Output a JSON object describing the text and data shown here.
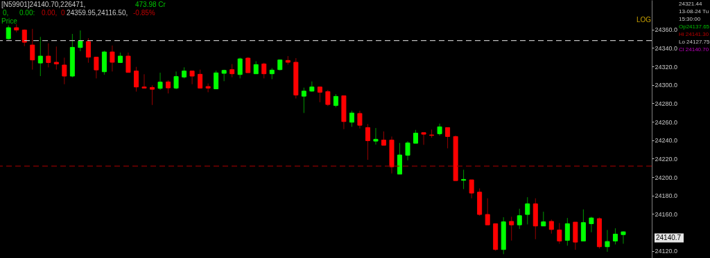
{
  "chart_data": {
    "type": "candlestick",
    "categories": [
      null,
      null,
      null,
      null,
      null,
      null,
      null,
      null,
      null,
      null,
      null,
      null,
      null,
      null,
      null,
      null,
      null,
      null,
      null,
      null,
      null,
      null,
      null,
      null,
      null,
      null,
      null,
      null,
      null,
      null,
      null,
      null,
      null,
      null,
      null,
      null,
      null,
      null,
      null,
      null,
      null,
      null,
      null,
      null,
      null,
      null,
      null,
      null,
      null,
      null,
      null,
      null,
      null,
      null,
      null,
      null,
      null,
      null,
      null,
      null,
      null,
      null,
      null,
      null,
      null,
      null,
      null,
      null,
      null,
      null,
      null,
      null,
      null,
      null,
      null,
      null,
      null,
      null
    ],
    "ohlc": [
      [
        24350,
        24364.5,
        24349,
        24362
      ],
      [
        24362,
        24365.7,
        24357,
        24359.5
      ],
      [
        24359.5,
        24360,
        24342,
        24346.2
      ],
      [
        24343.2,
        24360.7,
        24316.5,
        24327
      ],
      [
        24323.7,
        24352,
        24309.5,
        24331.2
      ],
      [
        24331.2,
        24345,
        24319,
        24324.2
      ],
      [
        24324.5,
        24341.5,
        24316.5,
        24322.7
      ],
      [
        24321.5,
        24329.5,
        24300.7,
        24309.5
      ],
      [
        24309.5,
        24355.2,
        24308.2,
        24340.7
      ],
      [
        24340.5,
        24359,
        24336.5,
        24347.5
      ],
      [
        24347,
        24350.7,
        24324,
        24330
      ],
      [
        24330,
        24330,
        24307,
        24316.2
      ],
      [
        24314.2,
        24337,
        24311,
        24335.7
      ],
      [
        24335.7,
        24342.7,
        24314.5,
        24324.5
      ],
      [
        24324.2,
        24335,
        24323.7,
        24331.2
      ],
      [
        24331.2,
        24335,
        24313.5,
        24313.5
      ],
      [
        24315,
        24319.5,
        24292.7,
        24297.7
      ],
      [
        24297.7,
        24311.5,
        24296.5,
        24296.5
      ],
      [
        24297.2,
        24299.5,
        24278.2,
        24295.2
      ],
      [
        24296.2,
        24313.2,
        24294.5,
        24303
      ],
      [
        24303.2,
        24305,
        24290.7,
        24296.7
      ],
      [
        24296.5,
        24314.5,
        24295.2,
        24309
      ],
      [
        24308.5,
        24319,
        24307,
        24315
      ],
      [
        24315,
        24315,
        24300.7,
        24309.5
      ],
      [
        24311.5,
        24316.5,
        24296.5,
        24296.5
      ],
      [
        24298.2,
        24301.5,
        24292,
        24296.5
      ],
      [
        24295.7,
        24315.5,
        24295.2,
        24313
      ],
      [
        24312.5,
        24316.5,
        24304,
        24315.7
      ],
      [
        24316.5,
        24322.5,
        24308.2,
        24312
      ],
      [
        24311.2,
        24329.5,
        24307,
        24328.2
      ],
      [
        24329,
        24330,
        24313.2,
        24313.2
      ],
      [
        24312,
        24325.7,
        24312,
        24322
      ],
      [
        24322.7,
        24324,
        24307,
        24312
      ],
      [
        24312,
        24318.2,
        24306.2,
        24316
      ],
      [
        24316.5,
        24327.5,
        24315.7,
        24327
      ],
      [
        24326.5,
        24331.2,
        24322,
        24324.5
      ],
      [
        24324.5,
        24329,
        24285.2,
        24289
      ],
      [
        24287.7,
        24297,
        24269.5,
        24293.2
      ],
      [
        24293.2,
        24303.7,
        24292.5,
        24297.7
      ],
      [
        24297.7,
        24297.7,
        24281.2,
        24292
      ],
      [
        24292.7,
        24294.5,
        24277,
        24278.7
      ],
      [
        24277.7,
        24290,
        24275.7,
        24287.5
      ],
      [
        24288.2,
        24288.2,
        24252,
        24260.2
      ],
      [
        24259.5,
        24272,
        24254.5,
        24269.5
      ],
      [
        24269,
        24272,
        24252.7,
        24256.2
      ],
      [
        24253.7,
        24257.5,
        24218.7,
        24239.5
      ],
      [
        24239,
        24253.2,
        24235.2,
        24241
      ],
      [
        24240.2,
        24249.5,
        24234.5,
        24234.5
      ],
      [
        24240.2,
        24244,
        24204,
        24211.2
      ],
      [
        24203.2,
        24237,
        24203.2,
        24224
      ],
      [
        24223.7,
        24239,
        24218.2,
        24237
      ],
      [
        24236.7,
        24251.2,
        24236.7,
        24247.7
      ],
      [
        24248.2,
        24248.2,
        24235,
        24246.5
      ],
      [
        24245.7,
        24251.5,
        24242.7,
        24245.2
      ],
      [
        24247,
        24258,
        24245,
        24254.5
      ],
      [
        24253.7,
        24253.7,
        24231.2,
        24244
      ],
      [
        24244,
        24245,
        24196.2,
        24196.2
      ],
      [
        24196.5,
        24208,
        24187,
        24197.5
      ],
      [
        24197,
        24197,
        24177,
        24182.7
      ],
      [
        24183.7,
        24187.7,
        24158.2,
        24159.5
      ],
      [
        24159.5,
        24177,
        24148.2,
        24148.2
      ],
      [
        24149.5,
        24149.5,
        24120.2,
        24121.5
      ],
      [
        24121.5,
        24156.5,
        24116.5,
        24151.5
      ],
      [
        24152,
        24157,
        24131.2,
        24148.2
      ],
      [
        24148.2,
        24165.7,
        24143.7,
        24158.2
      ],
      [
        24159.5,
        24178.2,
        24148.7,
        24171
      ],
      [
        24171,
        24177,
        24132.7,
        24147
      ],
      [
        24147,
        24162.5,
        24147,
        24151.5
      ],
      [
        24152,
        24154,
        24138.7,
        24143.2
      ],
      [
        24142.7,
        24150.2,
        24127.7,
        24130.7
      ],
      [
        24131.5,
        24155.7,
        24125.7,
        24149.5
      ],
      [
        24151.2,
        24151.2,
        24121.2,
        24129.5
      ],
      [
        24130.7,
        24165,
        24130.7,
        24150.7
      ],
      [
        24149.5,
        24157,
        24140.2,
        24155.7
      ],
      [
        24155,
        24156.2,
        24122.5,
        24124.5
      ],
      [
        24124.5,
        24142.7,
        24119,
        24130.2
      ],
      [
        24130.7,
        24144.5,
        24127,
        24138.2
      ],
      [
        24137.65,
        24141.3,
        24127.75,
        24140.7
      ]
    ],
    "colors": [
      "#00ff00",
      "#ff0000",
      "#ff0000",
      "#ff0000",
      "#00ff00",
      "#ff0000",
      "#ff0000",
      "#ff0000",
      "#00ff00",
      "#00ff00",
      "#ff0000",
      "#ff0000",
      "#00ff00",
      "#ff0000",
      "#00ff00",
      "#ff0000",
      "#ff0000",
      "#ff0000",
      "#ff0000",
      "#00ff00",
      "#ff0000",
      "#00ff00",
      "#00ff00",
      "#ff0000",
      "#ff0000",
      "#ff0000",
      "#00ff00",
      "#00ff00",
      "#ff0000",
      "#00ff00",
      "#ff0000",
      "#00ff00",
      "#ff0000",
      "#00ff00",
      "#00ff00",
      "#ff0000",
      "#ff0000",
      "#00ff00",
      "#00ff00",
      "#ff0000",
      "#ff0000",
      "#00ff00",
      "#ff0000",
      "#00ff00",
      "#ff0000",
      "#ff0000",
      "#00ff00",
      "#ff0000",
      "#ff0000",
      "#00ff00",
      "#00ff00",
      "#00ff00",
      "#ff0000",
      "#ff0000",
      "#00ff00",
      "#ff0000",
      "#ff0000",
      "#00ff00",
      "#ff0000",
      "#ff0000",
      "#ff0000",
      "#ff0000",
      "#00ff00",
      "#ff0000",
      "#00ff00",
      "#00ff00",
      "#ff0000",
      "#00ff00",
      "#ff0000",
      "#ff0000",
      "#00ff00",
      "#ff0000",
      "#00ff00",
      "#00ff00",
      "#ff0000",
      "#00ff00",
      "#00ff00",
      "#00ff00"
    ],
    "ylim": [
      24112.3,
      24392
    ],
    "yticks": [
      {
        "value": 24120,
        "label": "24120.0"
      },
      {
        "value": 24160,
        "label": "24160.0"
      },
      {
        "value": 24180,
        "label": "24180.0"
      },
      {
        "value": 24200,
        "label": "24200.0"
      },
      {
        "value": 24220,
        "label": "24220.0"
      },
      {
        "value": 24240,
        "label": "24240.0"
      },
      {
        "value": 24260,
        "label": "24260.0"
      },
      {
        "value": 24280,
        "label": "24280.0"
      },
      {
        "value": 24300,
        "label": "24300.0"
      },
      {
        "value": 24320,
        "label": "24320.0"
      },
      {
        "value": 24340,
        "label": "24340.0"
      },
      {
        "value": 24360,
        "label": "24360.0"
      }
    ],
    "ref_lines": [
      {
        "axis": "y",
        "value": 24348,
        "color": "#c0c0c0",
        "line_style": "dashed"
      },
      {
        "axis": "y",
        "value": 24212,
        "color": "#8b0000",
        "line_style": "dashed"
      }
    ],
    "grid": false,
    "tick_labels": "y",
    "annotations": [
      "[N59901]24140.70,226471,",
      "473.98  Cr",
      "0,",
      "0.00:",
      "0.00,",
      "0",
      "24359.95,24116.50,",
      "-0.85%",
      "Price",
      "LOG",
      "24321.44",
      "13-08-24 Tu",
      "15:30:00",
      "Op24137.65",
      "Hi 24141.30",
      "Lo 24127.75",
      "Cl 24140.70",
      "24140.7"
    ]
  }
}
